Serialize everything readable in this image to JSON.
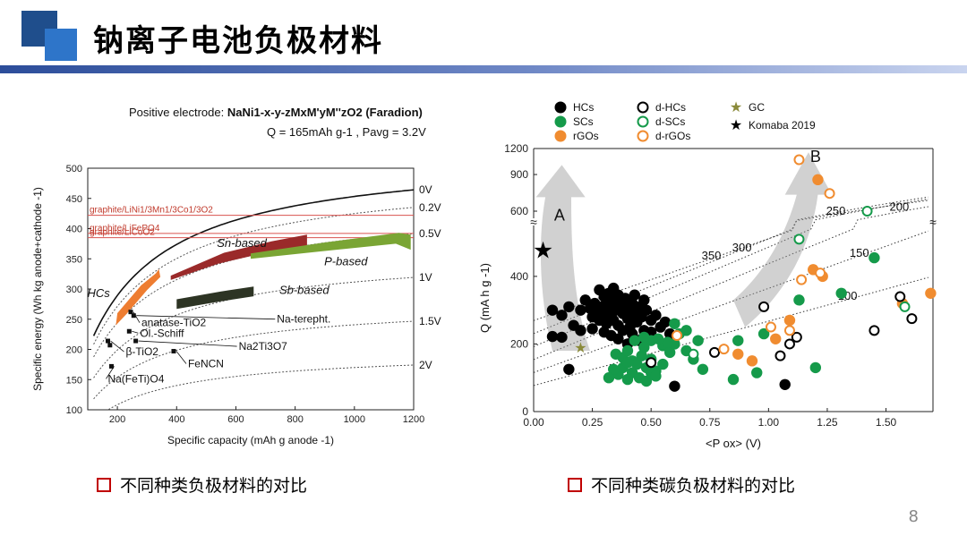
{
  "slide": {
    "title": "钠离子电池负极材料",
    "caption_left": "不同种类负极材料的对比",
    "caption_right": "不同种类碳负极材料的对比",
    "page_number": "8"
  },
  "colors": {
    "accent_dark": "#1f4e8c",
    "accent": "#2e75c9",
    "caption_box": "#c00000"
  },
  "chart_data": [
    {
      "type": "line",
      "header": {
        "line1_prefix": "Positive electrode: ",
        "line1_formula": "NaNi1-x-y-zMxM'yM''zO2 (Faradion)",
        "line2": "Q = 165mAh g-1 , Pavg = 3.2V"
      },
      "xlabel": "Specific capacity (mAh g anode -1)",
      "ylabel": "Specific energy (Wh kg anode+cathode -1)",
      "xlim": [
        100,
        1200
      ],
      "ylim": [
        100,
        500
      ],
      "xticks": [
        200,
        400,
        600,
        800,
        1000,
        1200
      ],
      "yticks": [
        100,
        150,
        200,
        250,
        300,
        350,
        400,
        450,
        500
      ],
      "voltage_curves": [
        {
          "label": "0V",
          "v": 0.0,
          "style": "solid"
        },
        {
          "label": "0.2V",
          "v": 0.2,
          "style": "dotted"
        },
        {
          "label": "0.5V",
          "v": 0.5,
          "style": "dotted"
        },
        {
          "label": "1V",
          "v": 1.0,
          "style": "dotted"
        },
        {
          "label": "1.5V",
          "v": 1.5,
          "style": "dotted"
        },
        {
          "label": "2V",
          "v": 2.0,
          "style": "dotted"
        }
      ],
      "reference_lines": [
        {
          "label": "graphite/LiNi1/3Mn1/3Co1/3O2",
          "y": 422
        },
        {
          "label": "graphite/LiFePO4",
          "y": 392
        },
        {
          "label": "graphite/LiCoO2",
          "y": 385
        }
      ],
      "regions": [
        {
          "label": "HCs",
          "color": "#ee7d31",
          "band": [
            [
              200,
              260
            ],
            [
              280,
              306
            ],
            [
              330,
              326
            ],
            [
              340,
              333
            ],
            [
              345,
              320
            ],
            [
              300,
              298
            ],
            [
              230,
              258
            ],
            [
              195,
              240
            ]
          ]
        },
        {
          "label": "Sn-based",
          "color": "#9a2a2a",
          "band": [
            [
              380,
              322
            ],
            [
              560,
              360
            ],
            [
              720,
              379
            ],
            [
              840,
              390
            ],
            [
              840,
              370
            ],
            [
              700,
              360
            ],
            [
              540,
              342
            ],
            [
              380,
              315
            ]
          ]
        },
        {
          "label": "P-based",
          "color": "#7aa534",
          "band": [
            [
              650,
              359
            ],
            [
              900,
              377
            ],
            [
              1150,
              393
            ],
            [
              1190,
              390
            ],
            [
              1190,
              365
            ],
            [
              1140,
              375
            ],
            [
              900,
              363
            ],
            [
              650,
              350
            ]
          ]
        },
        {
          "label": "Sb-based",
          "color": "#2d3424",
          "band": [
            [
              400,
              283
            ],
            [
              550,
              296
            ],
            [
              660,
              304
            ],
            [
              660,
              288
            ],
            [
              540,
              279
            ],
            [
              400,
              267
            ]
          ]
        }
      ],
      "points": [
        {
          "label": "anatase-TiO2",
          "x": 245,
          "y": 262
        },
        {
          "label": "Na-terepht.",
          "x": 255,
          "y": 256
        },
        {
          "label": "Ol.-Schiff",
          "x": 240,
          "y": 230
        },
        {
          "label": "Na2Ti3O7",
          "x": 262,
          "y": 214
        },
        {
          "label": "β-TiO2",
          "x": 168,
          "y": 214
        },
        {
          "label": "",
          "x": 175,
          "y": 207
        },
        {
          "label": "FeNCN",
          "x": 390,
          "y": 197
        },
        {
          "label": "Na(FeTi)O4",
          "x": 180,
          "y": 172
        }
      ]
    },
    {
      "type": "scatter",
      "xlabel": "<P ox> (V)",
      "ylabel": "Q (mA h g -1)",
      "xlim": [
        0,
        1.7
      ],
      "xticks": [
        0.0,
        0.25,
        0.5,
        0.75,
        1.0,
        1.25,
        1.5
      ],
      "xtick_labels": [
        "0.00",
        "0.25",
        "0.50",
        "0.75",
        "1.00",
        "1.25",
        "1.50"
      ],
      "yticks_lower": [
        0,
        200,
        400
      ],
      "yticks_upper": [
        600,
        900,
        1200
      ],
      "legend": [
        {
          "label": "HCs",
          "marker": "filled-circle",
          "color": "#000000"
        },
        {
          "label": "SCs",
          "marker": "filled-circle",
          "color": "#159a4a"
        },
        {
          "label": "rGOs",
          "marker": "filled-circle",
          "color": "#f08c30"
        },
        {
          "label": "d-HCs",
          "marker": "open-circle",
          "color": "#000000"
        },
        {
          "label": "d-SCs",
          "marker": "open-circle",
          "color": "#159a4a"
        },
        {
          "label": "d-rGOs",
          "marker": "open-circle",
          "color": "#f08c30"
        },
        {
          "label": "GC",
          "marker": "star",
          "color": "#8a8a3a"
        },
        {
          "label": "Komaba 2019",
          "marker": "star",
          "color": "#000000"
        }
      ],
      "energy_contours": [
        {
          "label": "350"
        },
        {
          "label": "300"
        },
        {
          "label": "250"
        },
        {
          "label": "200"
        },
        {
          "label": "150"
        },
        {
          "label": "100"
        }
      ],
      "arrows": [
        {
          "label": "A"
        },
        {
          "label": "B"
        }
      ],
      "series": [
        {
          "name": "HCs",
          "points": [
            [
              0.08,
              222
            ],
            [
              0.12,
              220
            ],
            [
              0.08,
              300
            ],
            [
              0.12,
              285
            ],
            [
              0.15,
              310
            ],
            [
              0.17,
              255
            ],
            [
              0.2,
              300
            ],
            [
              0.22,
              330
            ],
            [
              0.24,
              305
            ],
            [
              0.25,
              280
            ],
            [
              0.26,
              320
            ],
            [
              0.27,
              295
            ],
            [
              0.28,
              270
            ],
            [
              0.29,
              310
            ],
            [
              0.3,
              340
            ],
            [
              0.3,
              290
            ],
            [
              0.31,
              260
            ],
            [
              0.32,
              350
            ],
            [
              0.32,
              315
            ],
            [
              0.33,
              285
            ],
            [
              0.34,
              330
            ],
            [
              0.34,
              270
            ],
            [
              0.35,
              300
            ],
            [
              0.36,
              345
            ],
            [
              0.36,
              255
            ],
            [
              0.37,
              320
            ],
            [
              0.38,
              290
            ],
            [
              0.38,
              240
            ],
            [
              0.39,
              335
            ],
            [
              0.4,
              305
            ],
            [
              0.4,
              275
            ],
            [
              0.41,
              250
            ],
            [
              0.42,
              320
            ],
            [
              0.43,
              290
            ],
            [
              0.44,
              265
            ],
            [
              0.45,
              310
            ],
            [
              0.46,
              280
            ],
            [
              0.47,
              240
            ],
            [
              0.48,
              300
            ],
            [
              0.5,
              270
            ],
            [
              0.52,
              285
            ],
            [
              0.54,
              250
            ],
            [
              0.56,
              265
            ],
            [
              0.58,
              230
            ],
            [
              0.33,
              225
            ],
            [
              0.36,
              215
            ],
            [
              0.4,
              200
            ],
            [
              0.45,
              210
            ],
            [
              0.5,
              235
            ],
            [
              0.42,
              230
            ],
            [
              0.3,
              235
            ],
            [
              0.25,
              245
            ],
            [
              0.43,
              345
            ],
            [
              0.47,
              330
            ],
            [
              0.15,
              125
            ],
            [
              0.6,
              75
            ],
            [
              1.07,
              80
            ],
            [
              0.2,
              240
            ],
            [
              0.28,
              360
            ],
            [
              0.34,
              365
            ]
          ]
        },
        {
          "name": "SCs",
          "points": [
            [
              0.35,
              170
            ],
            [
              0.38,
              160
            ],
            [
              0.4,
              180
            ],
            [
              0.42,
              150
            ],
            [
              0.44,
              140
            ],
            [
              0.46,
              165
            ],
            [
              0.48,
              130
            ],
            [
              0.5,
              155
            ],
            [
              0.52,
              120
            ],
            [
              0.55,
              140
            ],
            [
              0.36,
              110
            ],
            [
              0.38,
              130
            ],
            [
              0.4,
              95
            ],
            [
              0.42,
              115
            ],
            [
              0.45,
              100
            ],
            [
              0.48,
              90
            ],
            [
              0.5,
              115
            ],
            [
              0.52,
              105
            ],
            [
              0.55,
              195
            ],
            [
              0.58,
              175
            ],
            [
              0.6,
              260
            ],
            [
              0.62,
              230
            ],
            [
              0.65,
              240
            ],
            [
              0.6,
              200
            ],
            [
              0.57,
              205
            ],
            [
              0.5,
              210
            ],
            [
              0.47,
              220
            ],
            [
              0.43,
              210
            ],
            [
              0.34,
              125
            ],
            [
              0.47,
              190
            ],
            [
              0.68,
              155
            ],
            [
              0.72,
              125
            ],
            [
              0.7,
              210
            ],
            [
              0.65,
              180
            ],
            [
              0.85,
              95
            ],
            [
              0.87,
              210
            ],
            [
              0.95,
              115
            ],
            [
              0.98,
              230
            ],
            [
              1.13,
              330
            ],
            [
              1.2,
              130
            ],
            [
              1.31,
              350
            ],
            [
              1.45,
              455
            ],
            [
              0.32,
              100
            ],
            [
              0.4,
              145
            ],
            [
              0.53,
              215
            ]
          ]
        },
        {
          "name": "rGOs",
          "points": [
            [
              0.87,
              170
            ],
            [
              0.93,
              150
            ],
            [
              1.03,
              215
            ],
            [
              1.09,
              270
            ],
            [
              1.19,
              420
            ],
            [
              1.23,
              400
            ],
            [
              1.21,
              850
            ],
            [
              1.57,
              320
            ],
            [
              1.69,
              350
            ]
          ]
        },
        {
          "name": "d-HCs",
          "points": [
            [
              0.5,
              145
            ],
            [
              0.77,
              175
            ],
            [
              0.98,
              310
            ],
            [
              1.05,
              165
            ],
            [
              1.12,
              220
            ],
            [
              1.09,
              200
            ],
            [
              1.45,
              240
            ],
            [
              1.56,
              340
            ],
            [
              1.61,
              275
            ]
          ]
        },
        {
          "name": "d-SCs",
          "points": [
            [
              0.68,
              170
            ],
            [
              1.13,
              510
            ],
            [
              1.42,
              600
            ],
            [
              1.58,
              310
            ]
          ]
        },
        {
          "name": "d-rGOs",
          "points": [
            [
              0.61,
              225
            ],
            [
              0.81,
              185
            ],
            [
              1.09,
              240
            ],
            [
              1.14,
              390
            ],
            [
              1.22,
              410
            ],
            [
              1.13,
              1060
            ],
            [
              1.26,
              730
            ],
            [
              1.01,
              250
            ]
          ]
        },
        {
          "name": "GC",
          "points": [
            [
              0.2,
              190
            ]
          ]
        },
        {
          "name": "Komaba 2019",
          "points": [
            [
              0.04,
              478
            ]
          ]
        }
      ]
    }
  ]
}
